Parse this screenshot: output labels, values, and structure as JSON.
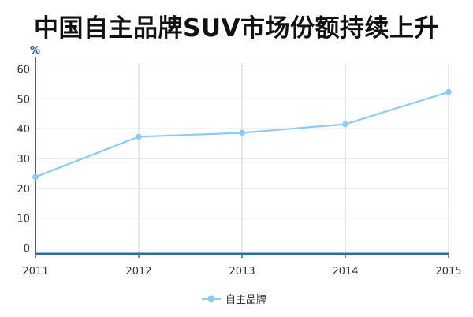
{
  "chart_data": {
    "type": "line",
    "title": "中国自主品牌SUV市场份额持续上升",
    "ylabel": "%",
    "xlabel": "",
    "x": [
      "2011",
      "2012",
      "2013",
      "2014",
      "2015"
    ],
    "series": [
      {
        "name": "自主品牌",
        "values": [
          23.8,
          37.3,
          38.6,
          41.5,
          52.3
        ]
      }
    ],
    "ylim": [
      -2,
      62
    ],
    "yticks": [
      0,
      10,
      20,
      30,
      40,
      50,
      60
    ],
    "grid": true,
    "legend": "bottom-center",
    "colors": {
      "line": "#8ecbec",
      "marker": "#8ecbec",
      "grid": "#d0d0d0",
      "axis": "#2f6d99"
    }
  }
}
